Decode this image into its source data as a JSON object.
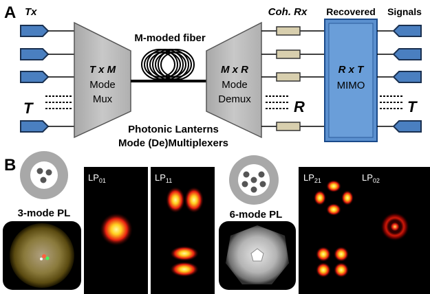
{
  "panel_a": {
    "panel_label": "A",
    "tx": "Tx",
    "fiber_label": "M-moded fiber",
    "coh_rx": "Coh. Rx",
    "recovered": "Recovered",
    "signals": "Signals",
    "mux": {
      "line1": "T x M",
      "line2": "Mode",
      "line3": "Mux"
    },
    "demux": {
      "line1": "M x R",
      "line2": "Mode",
      "line3": "Demux"
    },
    "mimo": {
      "line1": "R x T",
      "line2": "MIMO"
    },
    "t_left": "T",
    "r_label": "R",
    "t_right": "T",
    "caption_line1": "Photonic Lanterns",
    "caption_line2": "Mode (De)Multiplexers"
  },
  "panel_b": {
    "panel_label": "B",
    "pl3_label": "3-mode PL",
    "pl6_label": "6-mode PL",
    "modes": [
      {
        "name": "LP",
        "sub": "01"
      },
      {
        "name": "LP",
        "sub": "11"
      },
      {
        "name": "LP",
        "sub": "21"
      },
      {
        "name": "LP",
        "sub": "02"
      }
    ]
  },
  "colors": {
    "tx_blue": "#4a7fc0",
    "mux_gray": "#b8b8b8",
    "mimo_blue": "#5b90cf",
    "rx_tan": "#d8cfae",
    "mode_red": "#e02010",
    "mode_yellow": "#ffe650"
  }
}
